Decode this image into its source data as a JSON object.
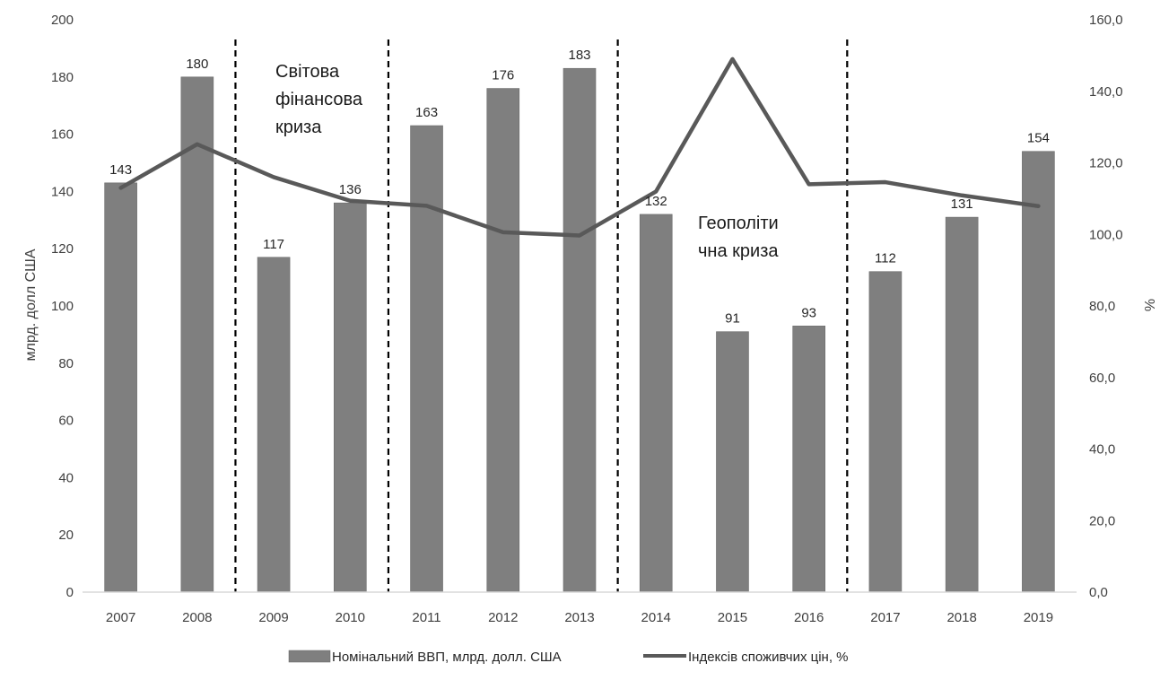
{
  "chart_data": {
    "type": "bar",
    "categories": [
      "2007",
      "2008",
      "2009",
      "2010",
      "2011",
      "2012",
      "2013",
      "2014",
      "2015",
      "2016",
      "2017",
      "2018",
      "2019"
    ],
    "series": [
      {
        "name": "Номінальний ВВП, млрд. долл. США",
        "type": "bar",
        "axis": "left",
        "values": [
          143,
          180,
          117,
          136,
          163,
          176,
          183,
          132,
          91,
          93,
          112,
          131,
          154
        ],
        "color": "#7f7f7f"
      },
      {
        "name": "Індексів споживчих цін, %",
        "type": "line",
        "axis": "right",
        "values": [
          113.0,
          125.2,
          116.0,
          109.4,
          108.0,
          100.6,
          99.7,
          112.0,
          149.0,
          114.0,
          114.6,
          110.9,
          107.9
        ],
        "color": "#595959"
      }
    ],
    "ylabel_left": "млрд. долл США",
    "ylabel_right": "%",
    "ylim_left": [
      0,
      200
    ],
    "ylim_right": [
      0,
      160
    ],
    "yticks_left": [
      "0",
      "20",
      "40",
      "60",
      "80",
      "100",
      "120",
      "140",
      "160",
      "180",
      "200"
    ],
    "yticks_right": [
      "0,0",
      "20,0",
      "40,0",
      "60,0",
      "80,0",
      "100,0",
      "120,0",
      "140,0",
      "160,0"
    ],
    "crisis_lines_after": [
      "2008",
      "2010",
      "2013",
      "2016"
    ],
    "annotations": [
      {
        "lines": [
          "Світова",
          "фінансова",
          "криза"
        ]
      },
      {
        "lines": [
          "Геополіти",
          "чна криза"
        ]
      }
    ],
    "grid": false,
    "legend_position": "bottom"
  }
}
